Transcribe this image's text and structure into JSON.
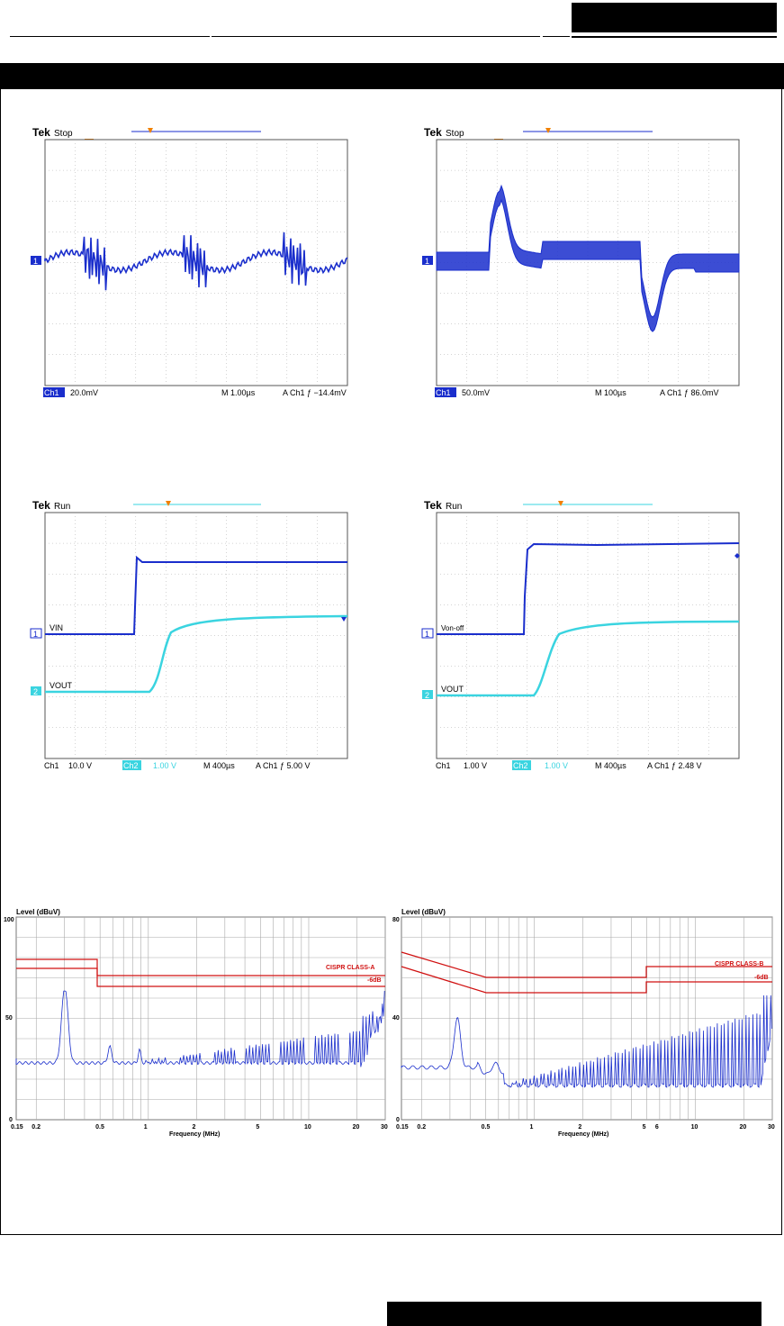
{
  "header": {
    "section_title": ""
  },
  "scopes": [
    {
      "id": "ripple",
      "brand": "Tek",
      "state": "Stop",
      "ch1_label": "Ch1",
      "ch1_scale": "20.0mV",
      "ch1_coupling": "½",
      "timebase": "M 1.00µs",
      "trigger": "A  Ch1  ƒ −14.4mV",
      "ground_marker": "1",
      "traces": []
    },
    {
      "id": "transient",
      "brand": "Tek",
      "state": "Stop",
      "ch1_label": "Ch1",
      "ch1_scale": "50.0mV",
      "ch1_coupling": "½",
      "timebase": "M 100µs",
      "trigger": "A  Ch1  ƒ  86.0mV",
      "ground_marker": "1",
      "traces": []
    },
    {
      "id": "startup-vin",
      "brand": "Tek",
      "state": "Run",
      "ch1_label": "Ch1",
      "ch1_scale": "10.0 V",
      "ch2_label": "Ch2",
      "ch2_scale": "1.00 V",
      "timebase": "M 400µs",
      "trigger": "A  Ch1  ƒ   5.00 V",
      "trace1_label": "VIN",
      "trace2_label": "VOUT",
      "marker1": "1",
      "marker2": "2"
    },
    {
      "id": "startup-onoff",
      "brand": "Tek",
      "state": "Run",
      "ch1_label": "Ch1",
      "ch1_scale": "1.00 V",
      "ch2_label": "Ch2",
      "ch2_scale": "1.00 V",
      "timebase": "M 400µs",
      "trigger": "A  Ch1  ƒ   2.48 V",
      "trace1_label": "Von-off",
      "trace2_label": "VOUT",
      "marker1": "1",
      "marker2": "2"
    }
  ],
  "emi": [
    {
      "id": "emi-class-a",
      "ylabel": "Level (dBuV)",
      "xlabel": "Frequency (MHz)",
      "ymax_label": "100",
      "ymid_label": "50",
      "ymin_label": "0",
      "limit_label": "CISPR CLASS-A",
      "margin_label": "-6dB",
      "x_ticks": [
        "0.15",
        "0.2",
        "0.5",
        "1",
        "2",
        "5",
        "10",
        "20",
        "30"
      ]
    },
    {
      "id": "emi-class-b",
      "ylabel": "Level (dBuV)",
      "xlabel": "Frequency (MHz)",
      "ymax_label": "80",
      "ymid_label": "40",
      "ymin_label": "0",
      "limit_label": "CISPR CLASS-B",
      "margin_label": "-6dB",
      "x_ticks": [
        "0.15",
        "0.2",
        "0.5",
        "1",
        "2",
        "5",
        "6",
        "10",
        "20",
        "30"
      ]
    }
  ],
  "colors": {
    "ch1": "#1a2ecc",
    "ch2": "#3ad4e0",
    "trigger": "#f08000",
    "limit": "#d01010",
    "grid": "#999999"
  }
}
